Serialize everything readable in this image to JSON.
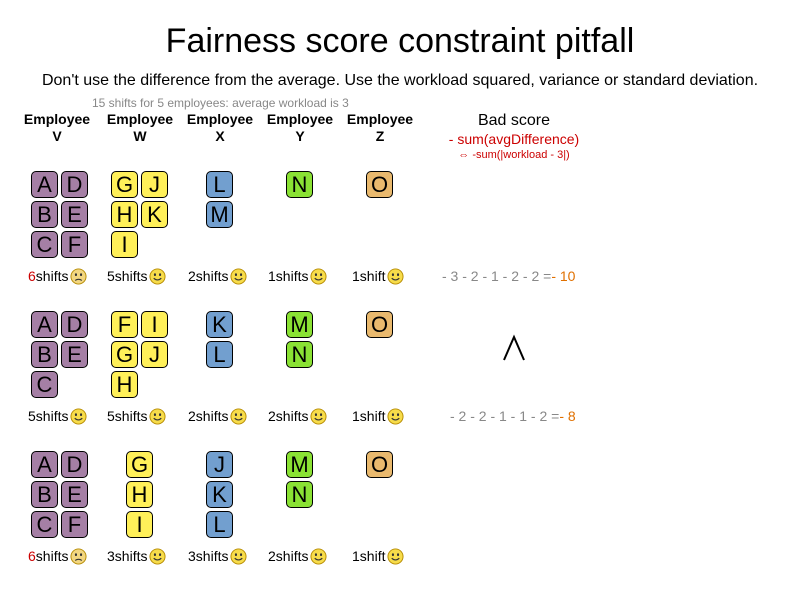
{
  "title": "Fairness score constraint pitfall",
  "subtitle": "Don't use the difference from the average. Use the workload squared, variance or standard deviation.",
  "note": "15 shifts for 5 employees: average workload is 3",
  "headers": [
    {
      "line1": "Employee",
      "line2": "V"
    },
    {
      "line1": "Employee",
      "line2": "W"
    },
    {
      "line1": "Employee",
      "line2": "X"
    },
    {
      "line1": "Employee",
      "line2": "Y"
    },
    {
      "line1": "Employee",
      "line2": "Z"
    }
  ],
  "bad_score": {
    "title": "Bad score",
    "formula": "- sum(avgDifference)",
    "equivalent": "⇔ -sum(|workload - 3|)"
  },
  "comparison_symbol": "^",
  "colors": {
    "V": "#a57fa5",
    "W": "#fff059",
    "X": "#729fcf",
    "Y": "#8ae234",
    "Z": "#e9b96e",
    "bad": "#cc0000",
    "score_result": "#e07000",
    "muted": "#888888"
  },
  "scenarios": [
    {
      "columns": [
        [
          "A",
          "D",
          "B",
          "E",
          "C",
          "F"
        ],
        [
          "G",
          "J",
          "H",
          "K",
          "I"
        ],
        [
          "L",
          "M"
        ],
        [
          "N"
        ],
        [
          "O"
        ]
      ],
      "labels": [
        {
          "count": "6",
          "unit": " shifts",
          "mood": "sad",
          "red": true
        },
        {
          "count": "5",
          "unit": " shifts",
          "mood": "happy",
          "red": false
        },
        {
          "count": "2",
          "unit": " shifts",
          "mood": "happy",
          "red": false
        },
        {
          "count": "1",
          "unit": " shifts",
          "mood": "happy",
          "red": false
        },
        {
          "count": "1",
          "unit": " shift",
          "mood": "happy",
          "red": false
        }
      ],
      "score_expr": "- 3 - 2 - 1 - 2 - 2 = ",
      "score_result": "- 10"
    },
    {
      "columns": [
        [
          "A",
          "D",
          "B",
          "E",
          "C"
        ],
        [
          "F",
          "I",
          "G",
          "J",
          "H"
        ],
        [
          "K",
          "L"
        ],
        [
          "M",
          "N"
        ],
        [
          "O"
        ]
      ],
      "labels": [
        {
          "count": "5",
          "unit": " shifts",
          "mood": "happy",
          "red": false
        },
        {
          "count": "5",
          "unit": " shifts",
          "mood": "happy",
          "red": false
        },
        {
          "count": "2",
          "unit": " shifts",
          "mood": "happy",
          "red": false
        },
        {
          "count": "2",
          "unit": " shifts",
          "mood": "happy",
          "red": false
        },
        {
          "count": "1",
          "unit": " shift",
          "mood": "happy",
          "red": false
        }
      ],
      "score_expr": "- 2 - 2 - 1 - 1 - 2 = ",
      "score_result": "- 8"
    },
    {
      "columns": [
        [
          "A",
          "D",
          "B",
          "E",
          "C",
          "F"
        ],
        [
          "G",
          "H",
          "I"
        ],
        [
          "J",
          "K",
          "L"
        ],
        [
          "M",
          "N"
        ],
        [
          "O"
        ]
      ],
      "labels": [
        {
          "count": "6",
          "unit": " shifts",
          "mood": "sad",
          "red": true
        },
        {
          "count": "3",
          "unit": " shifts",
          "mood": "happy",
          "red": false
        },
        {
          "count": "3",
          "unit": " shifts",
          "mood": "happy",
          "red": false
        },
        {
          "count": "2",
          "unit": " shifts",
          "mood": "happy",
          "red": false
        },
        {
          "count": "1",
          "unit": " shift",
          "mood": "happy",
          "red": false
        }
      ],
      "score_expr": "",
      "score_result": ""
    }
  ]
}
